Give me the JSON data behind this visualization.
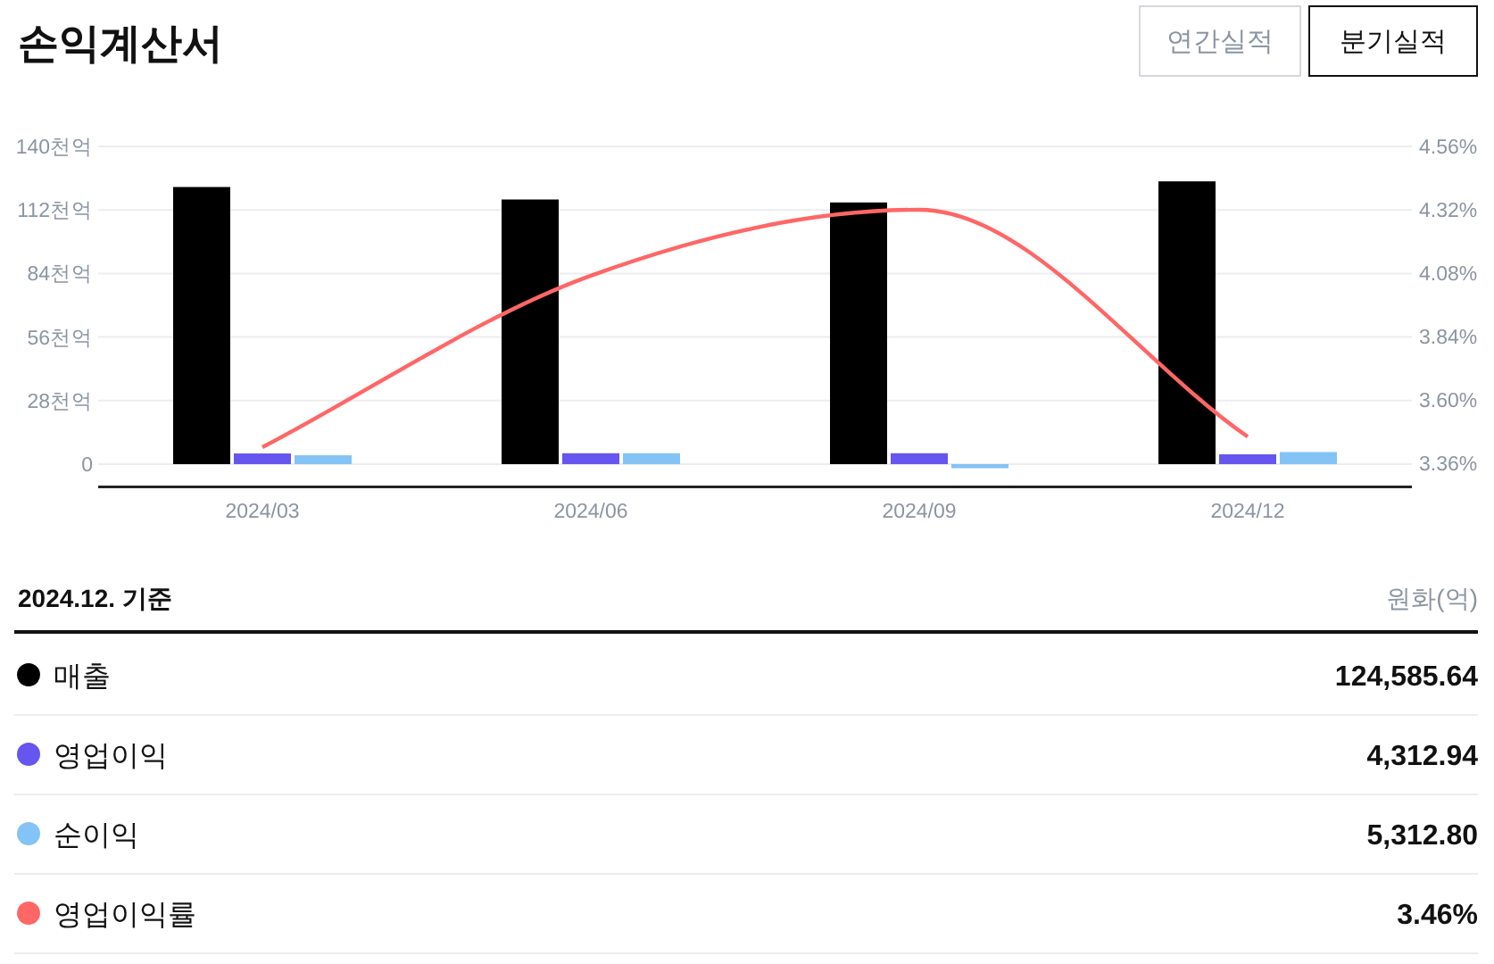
{
  "chart_data": {
    "type": "bar",
    "title": "손익계산서",
    "categories": [
      "2024/03",
      "2024/06",
      "2024/09",
      "2024/12"
    ],
    "series": [
      {
        "name": "매출",
        "color": "#000000",
        "values": [
          122.1,
          116.6,
          115.3,
          124.59
        ]
      },
      {
        "name": "영업이익",
        "color": "#6655ee",
        "values": [
          4.7,
          4.8,
          4.8,
          4.31
        ]
      },
      {
        "name": "순이익",
        "color": "#84c3f5",
        "values": [
          3.9,
          4.8,
          -1.8,
          5.31
        ]
      },
      {
        "name": "영업이익률",
        "type": "line",
        "axis": "y2",
        "color": "#ff6666",
        "values": [
          3.42,
          4.07,
          4.32,
          3.46
        ]
      }
    ],
    "ylim": [
      -10,
      140
    ],
    "yticks": [
      {
        "value": 0,
        "label": "0"
      },
      {
        "value": 28,
        "label": "28천억"
      },
      {
        "value": 56,
        "label": "56천억"
      },
      {
        "value": 84,
        "label": "84천억"
      },
      {
        "value": 112,
        "label": "112천억"
      },
      {
        "value": 140,
        "label": "140천억"
      }
    ],
    "y2lim": [
      3.27,
      4.56
    ],
    "y2ticks": [
      {
        "value": 3.36,
        "label": "3.36%"
      },
      {
        "value": 3.6,
        "label": "3.60%"
      },
      {
        "value": 3.84,
        "label": "3.84%"
      },
      {
        "value": 4.08,
        "label": "4.08%"
      },
      {
        "value": 4.32,
        "label": "4.32%"
      },
      {
        "value": 4.56,
        "label": "4.56%"
      }
    ],
    "grid": "y",
    "legend": "bottom",
    "annotations": [
      "연간실적",
      "분기실적",
      "2024.12. 기준",
      "원화(억)",
      "124,585.64",
      "4,312.94",
      "5,312.80",
      "3.46%"
    ]
  }
}
